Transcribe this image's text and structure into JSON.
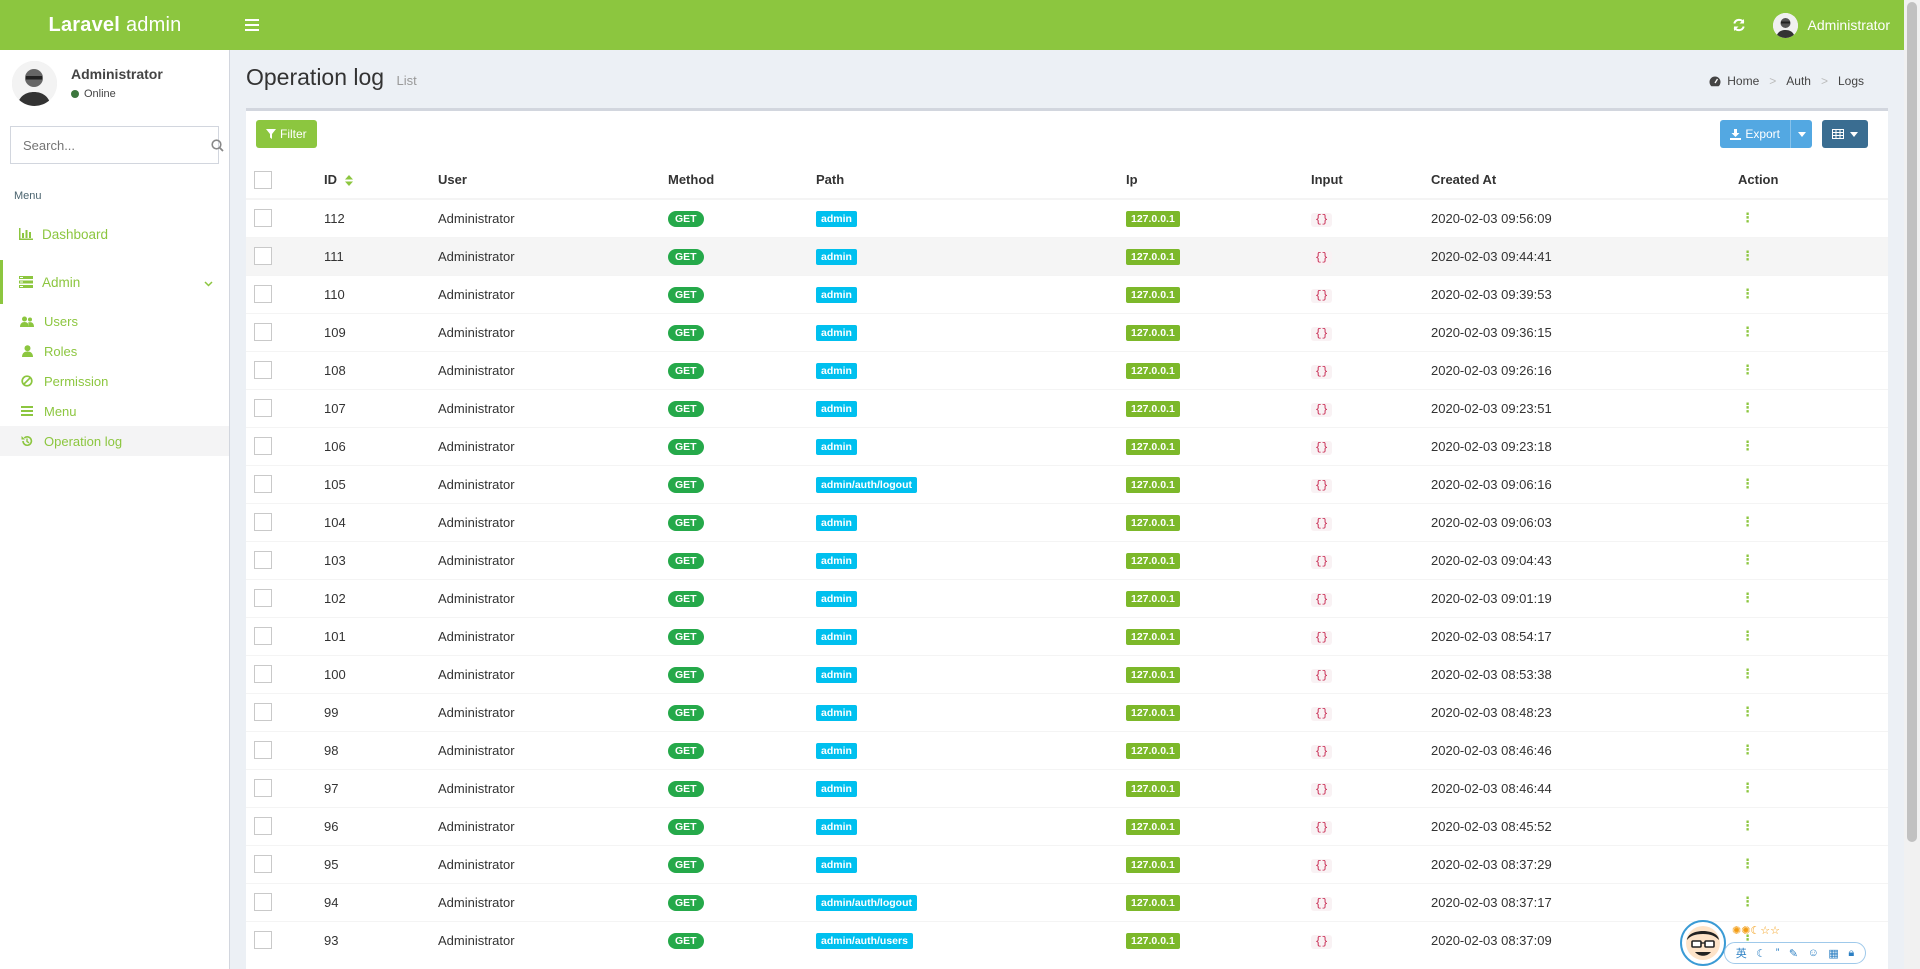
{
  "header": {
    "logo_bold": "Laravel",
    "logo_light": "admin",
    "user_name": "Administrator"
  },
  "sidebar": {
    "user_name": "Administrator",
    "status": "Online",
    "search_placeholder": "Search...",
    "menu_header": "Menu",
    "dashboard": "Dashboard",
    "admin": "Admin",
    "sub_items": [
      {
        "label": "Users",
        "icon": "users-icon"
      },
      {
        "label": "Roles",
        "icon": "user-icon"
      },
      {
        "label": "Permission",
        "icon": "ban-icon"
      },
      {
        "label": "Menu",
        "icon": "bars-icon"
      },
      {
        "label": "Operation log",
        "icon": "history-icon"
      }
    ]
  },
  "page": {
    "title": "Operation log",
    "subtitle": "List",
    "breadcrumb": [
      "Home",
      "Auth",
      "Logs"
    ]
  },
  "toolbar": {
    "filter": "Filter",
    "export": "Export"
  },
  "table": {
    "columns": [
      "ID",
      "User",
      "Method",
      "Path",
      "Ip",
      "Input",
      "Created At",
      "Action"
    ],
    "rows": [
      {
        "id": "112",
        "user": "Administrator",
        "method": "GET",
        "path": "admin",
        "ip": "127.0.0.1",
        "input": "{}",
        "created": "2020-02-03 09:56:09"
      },
      {
        "id": "111",
        "user": "Administrator",
        "method": "GET",
        "path": "admin",
        "ip": "127.0.0.1",
        "input": "{}",
        "created": "2020-02-03 09:44:41"
      },
      {
        "id": "110",
        "user": "Administrator",
        "method": "GET",
        "path": "admin",
        "ip": "127.0.0.1",
        "input": "{}",
        "created": "2020-02-03 09:39:53"
      },
      {
        "id": "109",
        "user": "Administrator",
        "method": "GET",
        "path": "admin",
        "ip": "127.0.0.1",
        "input": "{}",
        "created": "2020-02-03 09:36:15"
      },
      {
        "id": "108",
        "user": "Administrator",
        "method": "GET",
        "path": "admin",
        "ip": "127.0.0.1",
        "input": "{}",
        "created": "2020-02-03 09:26:16"
      },
      {
        "id": "107",
        "user": "Administrator",
        "method": "GET",
        "path": "admin",
        "ip": "127.0.0.1",
        "input": "{}",
        "created": "2020-02-03 09:23:51"
      },
      {
        "id": "106",
        "user": "Administrator",
        "method": "GET",
        "path": "admin",
        "ip": "127.0.0.1",
        "input": "{}",
        "created": "2020-02-03 09:23:18"
      },
      {
        "id": "105",
        "user": "Administrator",
        "method": "GET",
        "path": "admin/auth/logout",
        "ip": "127.0.0.1",
        "input": "{}",
        "created": "2020-02-03 09:06:16"
      },
      {
        "id": "104",
        "user": "Administrator",
        "method": "GET",
        "path": "admin",
        "ip": "127.0.0.1",
        "input": "{}",
        "created": "2020-02-03 09:06:03"
      },
      {
        "id": "103",
        "user": "Administrator",
        "method": "GET",
        "path": "admin",
        "ip": "127.0.0.1",
        "input": "{}",
        "created": "2020-02-03 09:04:43"
      },
      {
        "id": "102",
        "user": "Administrator",
        "method": "GET",
        "path": "admin",
        "ip": "127.0.0.1",
        "input": "{}",
        "created": "2020-02-03 09:01:19"
      },
      {
        "id": "101",
        "user": "Administrator",
        "method": "GET",
        "path": "admin",
        "ip": "127.0.0.1",
        "input": "{}",
        "created": "2020-02-03 08:54:17"
      },
      {
        "id": "100",
        "user": "Administrator",
        "method": "GET",
        "path": "admin",
        "ip": "127.0.0.1",
        "input": "{}",
        "created": "2020-02-03 08:53:38"
      },
      {
        "id": "99",
        "user": "Administrator",
        "method": "GET",
        "path": "admin",
        "ip": "127.0.0.1",
        "input": "{}",
        "created": "2020-02-03 08:48:23"
      },
      {
        "id": "98",
        "user": "Administrator",
        "method": "GET",
        "path": "admin",
        "ip": "127.0.0.1",
        "input": "{}",
        "created": "2020-02-03 08:46:46"
      },
      {
        "id": "97",
        "user": "Administrator",
        "method": "GET",
        "path": "admin",
        "ip": "127.0.0.1",
        "input": "{}",
        "created": "2020-02-03 08:46:44"
      },
      {
        "id": "96",
        "user": "Administrator",
        "method": "GET",
        "path": "admin",
        "ip": "127.0.0.1",
        "input": "{}",
        "created": "2020-02-03 08:45:52"
      },
      {
        "id": "95",
        "user": "Administrator",
        "method": "GET",
        "path": "admin",
        "ip": "127.0.0.1",
        "input": "{}",
        "created": "2020-02-03 08:37:29"
      },
      {
        "id": "94",
        "user": "Administrator",
        "method": "GET",
        "path": "admin/auth/logout",
        "ip": "127.0.0.1",
        "input": "{}",
        "created": "2020-02-03 08:37:17"
      },
      {
        "id": "93",
        "user": "Administrator",
        "method": "GET",
        "path": "admin/auth/users",
        "ip": "127.0.0.1",
        "input": "{}",
        "created": "2020-02-03 08:37:09"
      }
    ],
    "action_glyph": "⋮"
  },
  "ime": {
    "lang": "英",
    "stars": "✺✺☾☆☆"
  },
  "colors": {
    "brand": "#8cc63f",
    "path_label": "#00c0ef",
    "method_label": "#25a94a",
    "ip_label": "#7cb82a",
    "export_button": "#53a8e2",
    "columns_button": "#3a6d91"
  }
}
